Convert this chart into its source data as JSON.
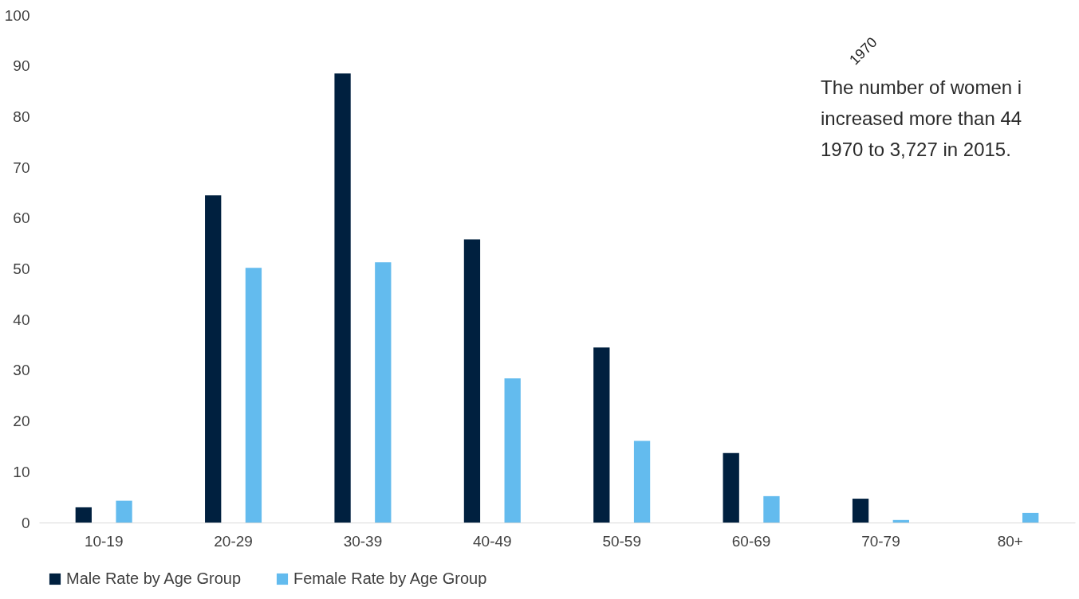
{
  "chart_data": {
    "type": "bar",
    "categories": [
      "10-19",
      "20-29",
      "30-39",
      "40-49",
      "50-59",
      "60-69",
      "70-79",
      "80+"
    ],
    "series": [
      {
        "name": "Male Rate by Age Group",
        "color": "#00203f",
        "values": [
          3.0,
          64.5,
          88.5,
          55.8,
          34.5,
          13.7,
          4.7,
          null
        ]
      },
      {
        "name": "Female Rate by Age Group",
        "color": "#63bbee",
        "values": [
          4.3,
          50.2,
          51.3,
          28.4,
          16.1,
          5.2,
          0.5,
          1.9
        ]
      }
    ],
    "ylim": [
      0,
      100
    ],
    "yticks": [
      0,
      10,
      20,
      30,
      40,
      50,
      60,
      70,
      80,
      90,
      100
    ],
    "grid": false,
    "legend": "bottom",
    "annotations": [
      "1970",
      "The number of women i",
      "increased more than 44",
      "1970 to 3,727 in 2015."
    ]
  }
}
